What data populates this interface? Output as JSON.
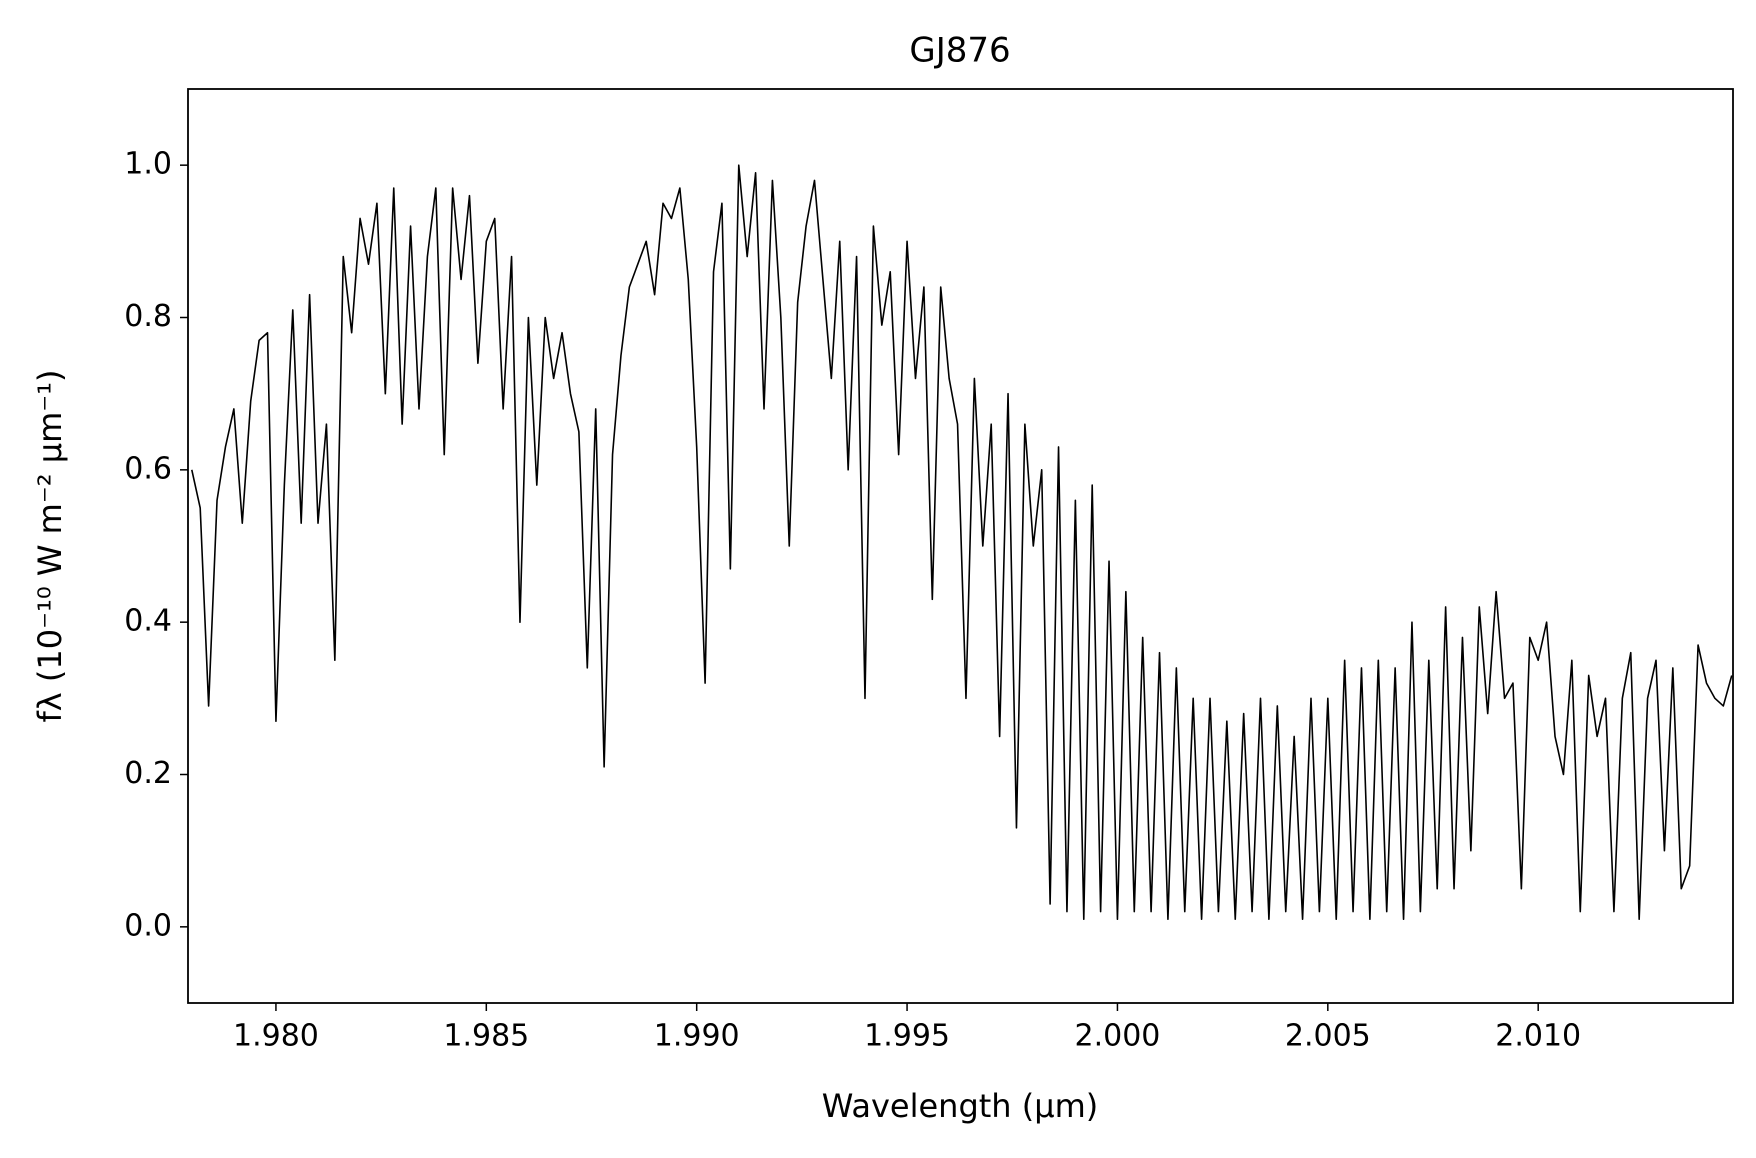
{
  "chart_data": {
    "type": "line",
    "title": "GJ876",
    "xlabel": "Wavelength (μm)",
    "ylabel": "fλ (10⁻¹⁰ W m⁻² μm⁻¹)",
    "color": "#000000",
    "xlim": [
      1.97791,
      2.01463
    ],
    "ylim": [
      -0.1,
      1.1
    ],
    "xticks": [
      {
        "value": 1.98,
        "label": "1.980"
      },
      {
        "value": 1.985,
        "label": "1.985"
      },
      {
        "value": 1.99,
        "label": "1.990"
      },
      {
        "value": 1.995,
        "label": "1.995"
      },
      {
        "value": 2.0,
        "label": "2.000"
      },
      {
        "value": 2.005,
        "label": "2.005"
      },
      {
        "value": 2.01,
        "label": "2.010"
      }
    ],
    "yticks": [
      {
        "value": 0,
        "label": "0.0"
      },
      {
        "value": 0.2,
        "label": "0.2"
      },
      {
        "value": 0.4,
        "label": "0.4"
      },
      {
        "value": 0.6,
        "label": "0.6"
      },
      {
        "value": 0.8,
        "label": "0.8"
      },
      {
        "value": 1,
        "label": "1.0"
      }
    ],
    "x": [
      1.978,
      1.9782,
      1.9784,
      1.9786,
      1.9788,
      1.979,
      1.9792,
      1.9794,
      1.9796,
      1.9798,
      1.98,
      1.9802,
      1.9804,
      1.9806,
      1.9808,
      1.981,
      1.9812,
      1.9814,
      1.9816,
      1.9818,
      1.982,
      1.9822,
      1.9824,
      1.9826,
      1.9828,
      1.983,
      1.9832,
      1.9834,
      1.9836,
      1.9838,
      1.984,
      1.9842,
      1.9844,
      1.9846,
      1.9848,
      1.985,
      1.9852,
      1.9854,
      1.9856,
      1.9858,
      1.986,
      1.9862,
      1.9864,
      1.9866,
      1.9868,
      1.987,
      1.9872,
      1.9874,
      1.9876,
      1.9878,
      1.988,
      1.9882,
      1.9884,
      1.9886,
      1.9888,
      1.989,
      1.9892,
      1.9894,
      1.9896,
      1.9898,
      1.99,
      1.9902,
      1.9904,
      1.9906,
      1.9908,
      1.991,
      1.9912,
      1.9914,
      1.9916,
      1.9918,
      1.992,
      1.9922,
      1.9924,
      1.9926,
      1.9928,
      1.993,
      1.9932,
      1.9934,
      1.9936,
      1.9938,
      1.994,
      1.9942,
      1.9944,
      1.9946,
      1.9948,
      1.995,
      1.9952,
      1.9954,
      1.9956,
      1.9958,
      1.996,
      1.9962,
      1.9964,
      1.9966,
      1.9968,
      1.997,
      1.9972,
      1.9974,
      1.9976,
      1.9978,
      1.998,
      1.9982,
      1.9984,
      1.9986,
      1.9988,
      1.999,
      1.9992,
      1.9994,
      1.9996,
      1.9998,
      2.0,
      2.0002,
      2.0004,
      2.0006,
      2.0008,
      2.001,
      2.0012,
      2.0014,
      2.0016,
      2.0018,
      2.002,
      2.0022,
      2.0024,
      2.0026,
      2.0028,
      2.003,
      2.0032,
      2.0034,
      2.0036,
      2.0038,
      2.004,
      2.0042,
      2.0044,
      2.0046,
      2.0048,
      2.005,
      2.0052,
      2.0054,
      2.0056,
      2.0058,
      2.006,
      2.0062,
      2.0064,
      2.0066,
      2.0068,
      2.007,
      2.0072,
      2.0074,
      2.0076,
      2.0078,
      2.008,
      2.0082,
      2.0084,
      2.0086,
      2.0088,
      2.009,
      2.0092,
      2.0094,
      2.0096,
      2.0098,
      2.01,
      2.0102,
      2.0104,
      2.0106,
      2.0108,
      2.011,
      2.0112,
      2.0114,
      2.0116,
      2.0118,
      2.012,
      2.0122,
      2.0124,
      2.0126,
      2.0128,
      2.013,
      2.0132,
      2.0134,
      2.0136,
      2.0138,
      2.014,
      2.0142,
      2.0144,
      2.0146
    ],
    "values": [
      0.6,
      0.55,
      0.29,
      0.56,
      0.63,
      0.68,
      0.53,
      0.69,
      0.77,
      0.78,
      0.27,
      0.58,
      0.81,
      0.53,
      0.83,
      0.53,
      0.66,
      0.35,
      0.88,
      0.78,
      0.93,
      0.87,
      0.95,
      0.7,
      0.97,
      0.66,
      0.92,
      0.68,
      0.88,
      0.97,
      0.62,
      0.97,
      0.85,
      0.96,
      0.74,
      0.9,
      0.93,
      0.68,
      0.88,
      0.4,
      0.8,
      0.58,
      0.8,
      0.72,
      0.78,
      0.7,
      0.65,
      0.34,
      0.68,
      0.21,
      0.62,
      0.75,
      0.84,
      0.87,
      0.9,
      0.83,
      0.95,
      0.93,
      0.97,
      0.85,
      0.63,
      0.32,
      0.86,
      0.95,
      0.47,
      1.0,
      0.88,
      0.99,
      0.68,
      0.98,
      0.8,
      0.5,
      0.82,
      0.92,
      0.98,
      0.85,
      0.72,
      0.9,
      0.6,
      0.88,
      0.3,
      0.92,
      0.79,
      0.86,
      0.62,
      0.9,
      0.72,
      0.84,
      0.43,
      0.84,
      0.72,
      0.66,
      0.3,
      0.72,
      0.5,
      0.66,
      0.25,
      0.7,
      0.13,
      0.66,
      0.5,
      0.6,
      0.03,
      0.63,
      0.02,
      0.56,
      0.01,
      0.58,
      0.02,
      0.48,
      0.01,
      0.44,
      0.02,
      0.38,
      0.02,
      0.36,
      0.01,
      0.34,
      0.02,
      0.3,
      0.01,
      0.3,
      0.02,
      0.27,
      0.01,
      0.28,
      0.02,
      0.3,
      0.01,
      0.29,
      0.02,
      0.25,
      0.01,
      0.3,
      0.02,
      0.3,
      0.01,
      0.35,
      0.02,
      0.34,
      0.01,
      0.35,
      0.02,
      0.34,
      0.01,
      0.4,
      0.02,
      0.35,
      0.05,
      0.42,
      0.05,
      0.38,
      0.1,
      0.42,
      0.28,
      0.44,
      0.3,
      0.32,
      0.05,
      0.38,
      0.35,
      0.4,
      0.25,
      0.2,
      0.35,
      0.02,
      0.33,
      0.25,
      0.3,
      0.02,
      0.3,
      0.36,
      0.01,
      0.3,
      0.35,
      0.1,
      0.34,
      0.05,
      0.08,
      0.37,
      0.32,
      0.3,
      0.29,
      0.33
    ]
  }
}
